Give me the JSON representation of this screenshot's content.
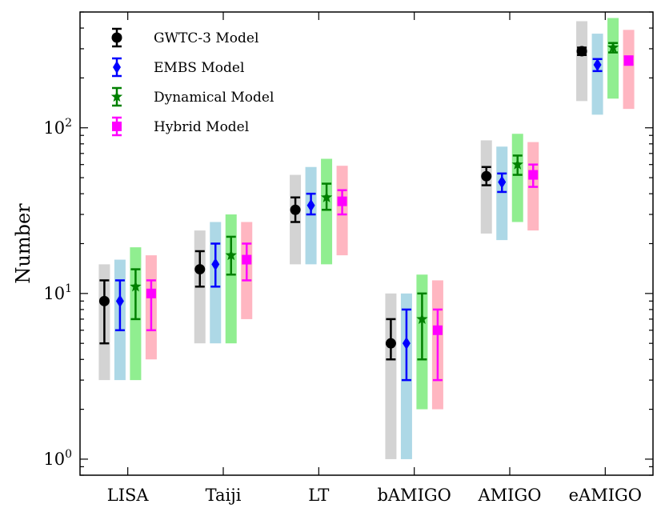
{
  "chart_data": {
    "type": "errorbar",
    "scale_y": "log",
    "ylabel": "Number",
    "xlabel": "",
    "ylim": [
      0.8,
      500
    ],
    "yticks": [
      {
        "value": 1,
        "base": "10",
        "exp": "0"
      },
      {
        "value": 10,
        "base": "10",
        "exp": "1"
      },
      {
        "value": 100,
        "base": "10",
        "exp": "2"
      }
    ],
    "categories": [
      "LISA",
      "Taiji",
      "LT",
      "bAMIGO",
      "AMIGO",
      "eAMIGO"
    ],
    "series": [
      {
        "name": "GWTC-3 Model",
        "color": "#000000",
        "band_color": "#d3d3d3",
        "marker": "circle",
        "values": [
          9,
          14,
          32,
          5,
          51,
          290
        ],
        "err_low": [
          5,
          11,
          27,
          4,
          45,
          275
        ],
        "err_high": [
          12,
          18,
          38,
          7,
          58,
          305
        ],
        "band_low": [
          3,
          5,
          15,
          1,
          23,
          145
        ],
        "band_high": [
          15,
          24,
          52,
          10,
          84,
          440
        ]
      },
      {
        "name": "EMBS Model",
        "color": "#0000ff",
        "band_color": "#add8e6",
        "marker": "diamond",
        "values": [
          9,
          15,
          34,
          5,
          47,
          240
        ],
        "err_low": [
          6,
          11,
          30,
          3,
          41,
          220
        ],
        "err_high": [
          12,
          20,
          40,
          8,
          53,
          260
        ],
        "band_low": [
          3,
          5,
          15,
          1,
          21,
          120
        ],
        "band_high": [
          16,
          27,
          58,
          10,
          77,
          370
        ]
      },
      {
        "name": "Dynamical Model",
        "color": "#008000",
        "band_color": "#90ee90",
        "marker": "star",
        "values": [
          11,
          17,
          38,
          7,
          60,
          305
        ],
        "err_low": [
          7,
          13,
          32,
          4,
          52,
          285
        ],
        "err_high": [
          14,
          22,
          46,
          10,
          68,
          325
        ],
        "band_low": [
          3,
          5,
          15,
          2,
          27,
          150
        ],
        "band_high": [
          19,
          30,
          65,
          13,
          92,
          460
        ]
      },
      {
        "name": "Hybrid Model",
        "color": "#ff00ff",
        "band_color": "#ffb6c1",
        "marker": "square",
        "values": [
          10,
          16,
          36,
          6,
          52,
          255
        ],
        "err_low": [
          6,
          12,
          30,
          3,
          44,
          240
        ],
        "err_high": [
          12,
          20,
          42,
          8,
          60,
          270
        ],
        "band_low": [
          4,
          7,
          17,
          2,
          24,
          130
        ],
        "band_high": [
          17,
          27,
          59,
          12,
          82,
          390
        ]
      }
    ],
    "legend_position": "upper-left"
  }
}
